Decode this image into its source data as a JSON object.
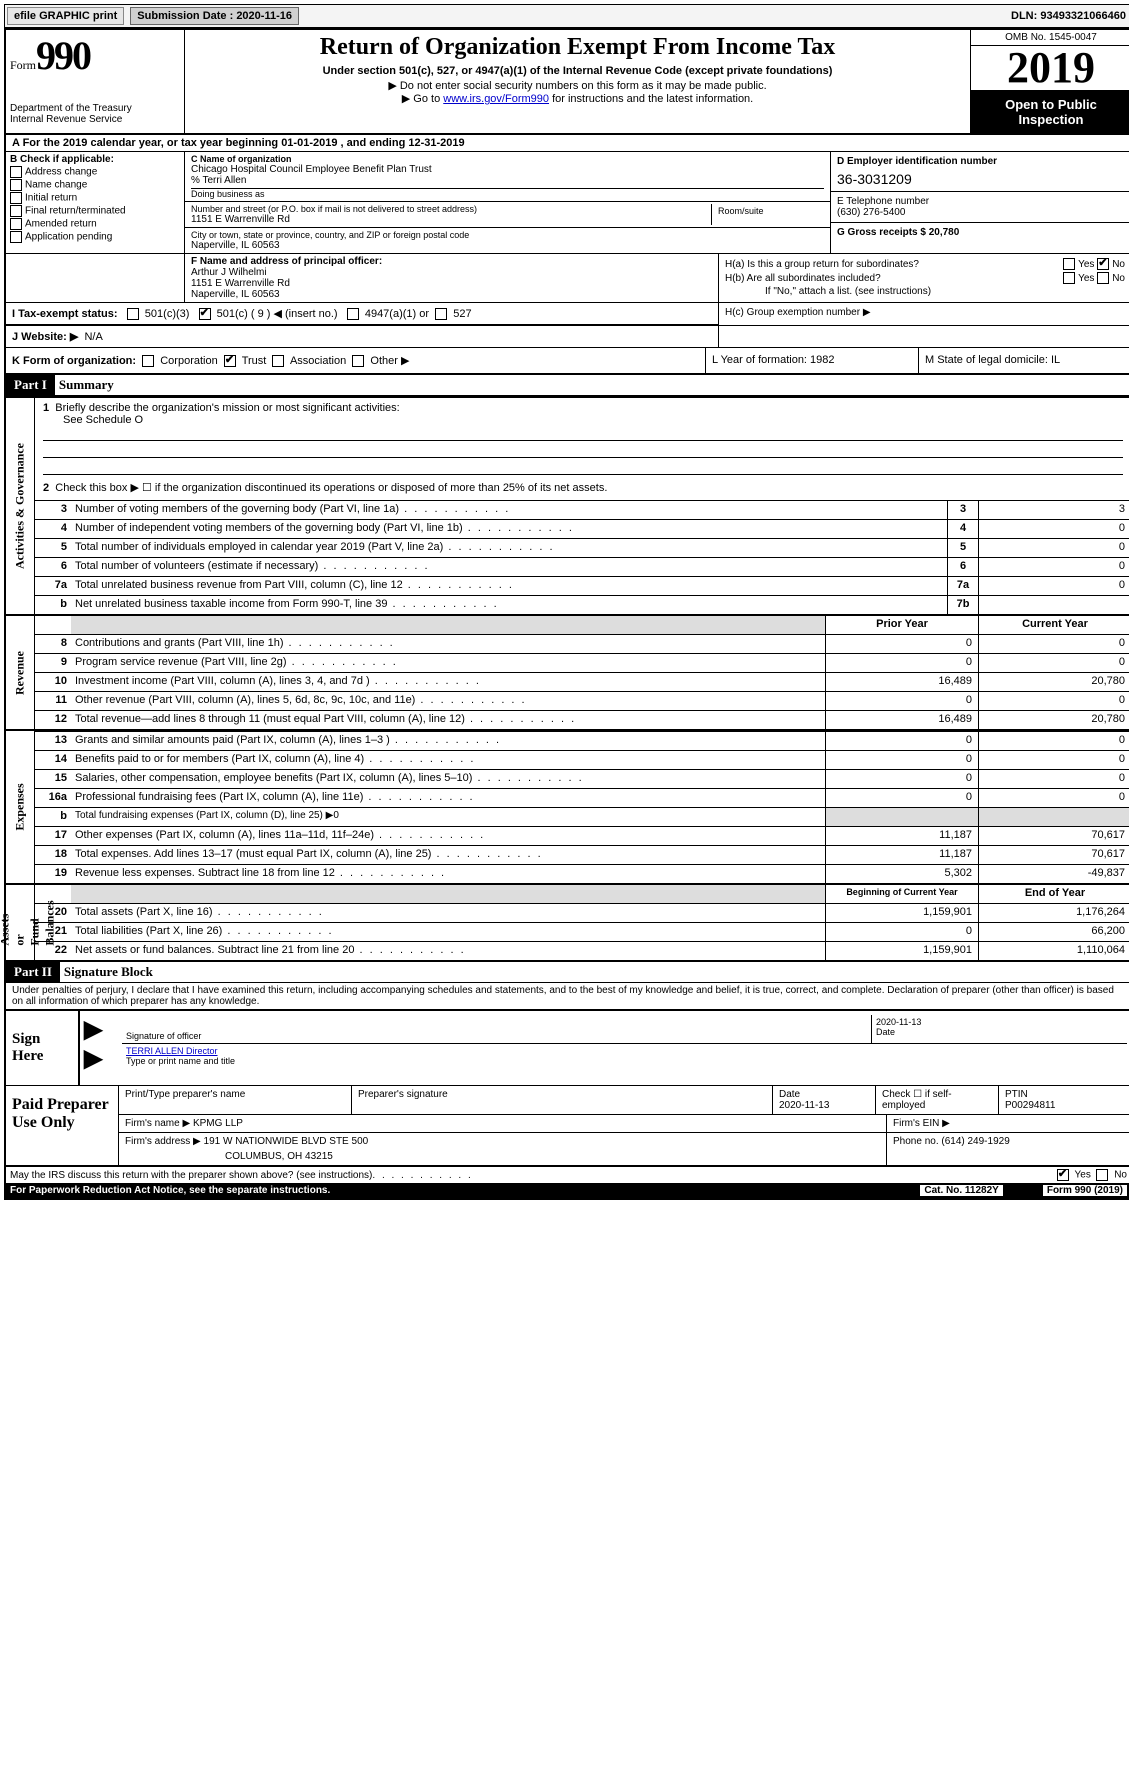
{
  "top": {
    "efile": "efile GRAPHIC print",
    "submission_label": "Submission Date : 2020-11-16",
    "dln": "DLN: 93493321066460"
  },
  "header": {
    "form_word": "Form",
    "form_num": "990",
    "dept": "Department of the Treasury\nInternal Revenue Service",
    "title": "Return of Organization Exempt From Income Tax",
    "sub1": "Under section 501(c), 527, or 4947(a)(1) of the Internal Revenue Code (except private foundations)",
    "sub2": "▶ Do not enter social security numbers on this form as it may be made public.",
    "sub3_pre": "▶ Go to ",
    "sub3_link": "www.irs.gov/Form990",
    "sub3_post": " for instructions and the latest information.",
    "omb": "OMB No. 1545-0047",
    "year": "2019",
    "open": "Open to Public Inspection"
  },
  "period": "A For the 2019 calendar year, or tax year beginning 01-01-2019    , and ending 12-31-2019",
  "boxB": {
    "label": "B Check if applicable:",
    "opts": [
      "Address change",
      "Name change",
      "Initial return",
      "Final return/terminated",
      "Amended return",
      "Application pending"
    ]
  },
  "boxC": {
    "label": "C Name of organization",
    "name": "Chicago Hospital Council Employee Benefit Plan Trust",
    "care": "% Terri Allen",
    "dba_label": "Doing business as",
    "addr_label": "Number and street (or P.O. box if mail is not delivered to street address)",
    "room_label": "Room/suite",
    "addr": "1151 E Warrenville Rd",
    "city_label": "City or town, state or province, country, and ZIP or foreign postal code",
    "city": "Naperville, IL  60563"
  },
  "boxD": {
    "label": "D Employer identification number",
    "ein": "36-3031209"
  },
  "boxE": {
    "label": "E Telephone number",
    "phone": "(630) 276-5400"
  },
  "boxG": {
    "text": "G Gross receipts $ 20,780"
  },
  "boxF": {
    "label": "F Name and address of principal officer:",
    "name": "Arthur J Wilhelmi",
    "addr1": "1151 E Warrenville Rd",
    "addr2": "Naperville, IL  60563"
  },
  "boxH": {
    "a": "H(a)  Is this a group return for subordinates?",
    "b": "H(b)  Are all subordinates included?",
    "b_note": "If \"No,\" attach a list. (see instructions)",
    "c": "H(c)  Group exemption number ▶",
    "yes": "Yes",
    "no": "No"
  },
  "taxI": {
    "label": "I   Tax-exempt status:",
    "c3": "501(c)(3)",
    "c_pre": "501(c) ( 9 ) ◀ (insert no.)",
    "a1": "4947(a)(1) or",
    "s527": "527"
  },
  "jweb": {
    "label": "J   Website: ▶",
    "val": "N/A"
  },
  "korg": {
    "label": "K Form of organization:",
    "opts": [
      "Corporation",
      "Trust",
      "Association",
      "Other ▶"
    ],
    "l": "L Year of formation: 1982",
    "m": "M State of legal domicile: IL"
  },
  "parts": {
    "p1": "Part I",
    "p1t": "Summary",
    "p2": "Part II",
    "p2t": "Signature Block"
  },
  "side": {
    "gov": "Activities & Governance",
    "rev": "Revenue",
    "exp": "Expenses",
    "net": "Net Assets or\nFund Balances"
  },
  "q1": {
    "n": "1",
    "t": "Briefly describe the organization's mission or most significant activities:",
    "v": "See Schedule O"
  },
  "q2": {
    "n": "2",
    "t": "Check this box ▶ ☐  if the organization discontinued its operations or disposed of more than 25% of its net assets."
  },
  "lines_gov": [
    {
      "n": "3",
      "t": "Number of voting members of the governing body (Part VI, line 1a)",
      "b": "3",
      "v": "3"
    },
    {
      "n": "4",
      "t": "Number of independent voting members of the governing body (Part VI, line 1b)",
      "b": "4",
      "v": "0"
    },
    {
      "n": "5",
      "t": "Total number of individuals employed in calendar year 2019 (Part V, line 2a)",
      "b": "5",
      "v": "0"
    },
    {
      "n": "6",
      "t": "Total number of volunteers (estimate if necessary)",
      "b": "6",
      "v": "0"
    },
    {
      "n": "7a",
      "t": "Total unrelated business revenue from Part VIII, column (C), line 12",
      "b": "7a",
      "v": "0"
    },
    {
      "n": "b",
      "t": "Net unrelated business taxable income from Form 990-T, line 39",
      "b": "7b",
      "v": ""
    }
  ],
  "col_hdr": {
    "prior": "Prior Year",
    "curr": "Current Year",
    "beg": "Beginning of Current Year",
    "end": "End of Year"
  },
  "lines_rev": [
    {
      "n": "8",
      "t": "Contributions and grants (Part VIII, line 1h)",
      "p": "0",
      "c": "0"
    },
    {
      "n": "9",
      "t": "Program service revenue (Part VIII, line 2g)",
      "p": "0",
      "c": "0"
    },
    {
      "n": "10",
      "t": "Investment income (Part VIII, column (A), lines 3, 4, and 7d )",
      "p": "16,489",
      "c": "20,780"
    },
    {
      "n": "11",
      "t": "Other revenue (Part VIII, column (A), lines 5, 6d, 8c, 9c, 10c, and 11e)",
      "p": "0",
      "c": "0"
    },
    {
      "n": "12",
      "t": "Total revenue—add lines 8 through 11 (must equal Part VIII, column (A), line 12)",
      "p": "16,489",
      "c": "20,780"
    }
  ],
  "lines_exp": [
    {
      "n": "13",
      "t": "Grants and similar amounts paid (Part IX, column (A), lines 1–3 )",
      "p": "0",
      "c": "0"
    },
    {
      "n": "14",
      "t": "Benefits paid to or for members (Part IX, column (A), line 4)",
      "p": "0",
      "c": "0"
    },
    {
      "n": "15",
      "t": "Salaries, other compensation, employee benefits (Part IX, column (A), lines 5–10)",
      "p": "0",
      "c": "0"
    },
    {
      "n": "16a",
      "t": "Professional fundraising fees (Part IX, column (A), line 11e)",
      "p": "0",
      "c": "0"
    }
  ],
  "line16b": {
    "n": "b",
    "t": "Total fundraising expenses (Part IX, column (D), line 25) ▶0"
  },
  "lines_exp2": [
    {
      "n": "17",
      "t": "Other expenses (Part IX, column (A), lines 11a–11d, 11f–24e)",
      "p": "11,187",
      "c": "70,617"
    },
    {
      "n": "18",
      "t": "Total expenses. Add lines 13–17 (must equal Part IX, column (A), line 25)",
      "p": "11,187",
      "c": "70,617"
    },
    {
      "n": "19",
      "t": "Revenue less expenses. Subtract line 18 from line 12",
      "p": "5,302",
      "c": "-49,837"
    }
  ],
  "lines_net": [
    {
      "n": "20",
      "t": "Total assets (Part X, line 16)",
      "p": "1,159,901",
      "c": "1,176,264"
    },
    {
      "n": "21",
      "t": "Total liabilities (Part X, line 26)",
      "p": "0",
      "c": "66,200"
    },
    {
      "n": "22",
      "t": "Net assets or fund balances. Subtract line 21 from line 20",
      "p": "1,159,901",
      "c": "1,110,064"
    }
  ],
  "penalties": "Under penalties of perjury, I declare that I have examined this return, including accompanying schedules and statements, and to the best of my knowledge and belief, it is true, correct, and complete. Declaration of preparer (other than officer) is based on all information of which preparer has any knowledge.",
  "sign": {
    "here": "Sign Here",
    "sig_label": "Signature of officer",
    "date_label": "Date",
    "date": "2020-11-13",
    "name": "TERRI ALLEN  Director",
    "name_label": "Type or print name and title"
  },
  "prep": {
    "label": "Paid Preparer Use Only",
    "r1": {
      "c1": "Print/Type preparer's name",
      "c2": "Preparer's signature",
      "c3l": "Date",
      "c3": "2020-11-13",
      "c4": "Check ☐ if self-employed",
      "c5l": "PTIN",
      "c5": "P00294811"
    },
    "r2": {
      "c1": "Firm's name    ▶",
      "c1v": "KPMG LLP",
      "c2": "Firm's EIN ▶"
    },
    "r3": {
      "c1": "Firm's address ▶",
      "c1v": "191 W NATIONWIDE BLVD STE 500",
      "c1v2": "COLUMBUS, OH  43215",
      "c2": "Phone no. (614) 249-1929"
    }
  },
  "discuss": {
    "t": "May the IRS discuss this return with the preparer shown above? (see instructions)",
    "yes": "Yes",
    "no": "No"
  },
  "foot": {
    "l": "For Paperwork Reduction Act Notice, see the separate instructions.",
    "m": "Cat. No. 11282Y",
    "r": "Form 990 (2019)"
  }
}
